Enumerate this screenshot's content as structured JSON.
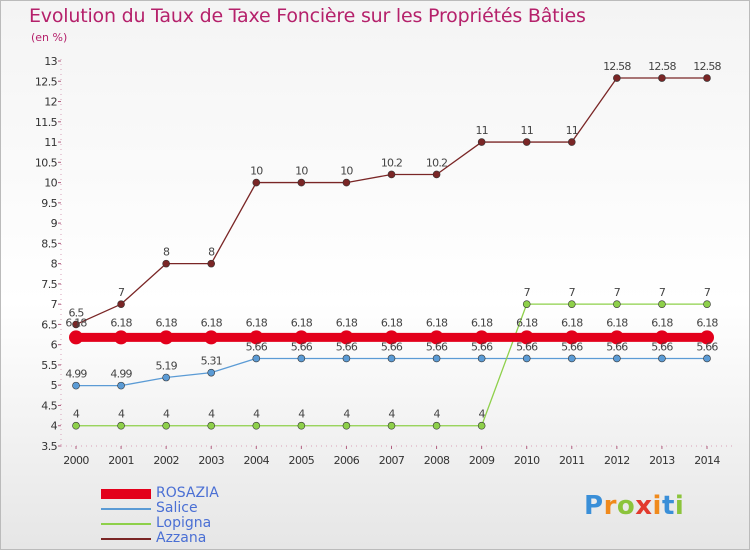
{
  "header": {
    "title": "Evolution du Taux de Taxe Foncière sur les Propriétés Bâties",
    "unit": "(en %)"
  },
  "chart_data": {
    "type": "line",
    "title": "Evolution du Taux de Taxe Foncière sur les Propriétés Bâties",
    "ylabel": "(en %)",
    "xlabel": "",
    "ylim": [
      3.5,
      13
    ],
    "yticks": [
      "3.5",
      "4",
      "4.5",
      "5",
      "5.5",
      "6",
      "6.5",
      "7",
      "7.5",
      "8",
      "8.5",
      "9",
      "9.5",
      "10",
      "10.5",
      "11",
      "11.5",
      "12",
      "12.5",
      "13"
    ],
    "categories": [
      "2000",
      "2001",
      "2002",
      "2003",
      "2004",
      "2005",
      "2006",
      "2007",
      "2008",
      "2009",
      "2010",
      "2011",
      "2012",
      "2013",
      "2014"
    ],
    "legend_position": "bottom-left",
    "series": [
      {
        "name": "ROSAZIA",
        "color": "#e3001b",
        "values": [
          6.18,
          6.18,
          6.18,
          6.18,
          6.18,
          6.18,
          6.18,
          6.18,
          6.18,
          6.18,
          6.18,
          6.18,
          6.18,
          6.18,
          6.18
        ],
        "labels": [
          "6.18",
          "6.18",
          "6.18",
          "6.18",
          "6.18",
          "6.18",
          "6.18",
          "6.18",
          "6.18",
          "6.18",
          "6.18",
          "6.18",
          "6.18",
          "6.18",
          "6.18"
        ]
      },
      {
        "name": "Salice",
        "color": "#5b9bd5",
        "values": [
          4.99,
          4.99,
          5.19,
          5.31,
          5.66,
          5.66,
          5.66,
          5.66,
          5.66,
          5.66,
          5.66,
          5.66,
          5.66,
          5.66,
          5.66
        ],
        "labels": [
          "4.99",
          "4.99",
          "5.19",
          "5.31",
          "5.66",
          "5.66",
          "5.66",
          "5.66",
          "5.66",
          "5.66",
          "5.66",
          "5.66",
          "5.66",
          "5.66",
          "5.66"
        ]
      },
      {
        "name": "Lopigna",
        "color": "#8ed04a",
        "values": [
          4,
          4,
          4,
          4,
          4,
          4,
          4,
          4,
          4,
          4,
          7,
          7,
          7,
          7,
          7
        ],
        "labels": [
          "4",
          "4",
          "4",
          "4",
          "4",
          "4",
          "4",
          "4",
          "4",
          "4",
          "7",
          "7",
          "7",
          "7",
          "7"
        ]
      },
      {
        "name": "Azzana",
        "color": "#7a2626",
        "values": [
          6.5,
          7,
          8,
          8,
          10,
          10,
          10,
          10.2,
          10.2,
          11,
          11,
          11,
          12.58,
          12.58,
          12.58
        ],
        "labels": [
          "6.5",
          "7",
          "8",
          "8",
          "10",
          "10",
          "10",
          "10.2",
          "10.2",
          "11",
          "11",
          "11",
          "12.58",
          "12.58",
          "12.58"
        ]
      }
    ]
  },
  "legend": {
    "items": [
      "ROSAZIA",
      "Salice",
      "Lopigna",
      "Azzana"
    ]
  },
  "logo": {
    "letters": [
      "P",
      "r",
      "o",
      "x",
      "i",
      "t",
      "i"
    ],
    "colors": [
      "#3a8fd8",
      "#f08a1c",
      "#8cc43c",
      "#e23a2e",
      "#f08a1c",
      "#3a8fd8",
      "#8cc43c"
    ]
  }
}
